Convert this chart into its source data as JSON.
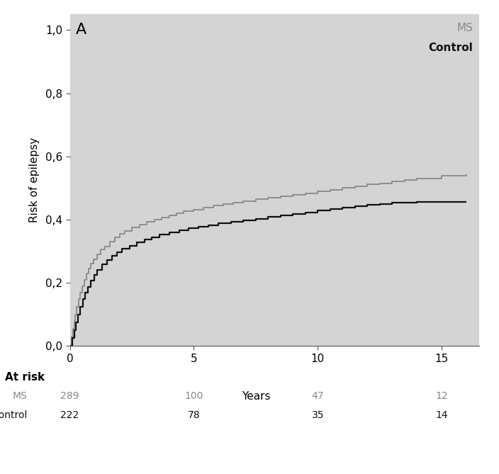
{
  "background_color": "#d4d4d4",
  "fig_bg_color": "#ffffff",
  "panel_label": "A",
  "ylabel": "Risk of epilepsy",
  "xlabel": "Years",
  "xlim": [
    0,
    16.5
  ],
  "ylim": [
    0.0,
    1.05
  ],
  "xticks": [
    0,
    5,
    10,
    15
  ],
  "yticks": [
    0.0,
    0.2,
    0.4,
    0.6,
    0.8,
    1.0
  ],
  "ytick_labels": [
    "0,0",
    "0,2",
    "0,4",
    "0,6",
    "0,8",
    "1,0"
  ],
  "ms_color": "#888888",
  "control_color": "#111111",
  "legend_ms": "MS",
  "legend_control": "Control",
  "at_risk_label": "At risk",
  "at_risk_ms_label": "MS",
  "at_risk_control_label": "Control",
  "at_risk_times": [
    0,
    5,
    10,
    15
  ],
  "at_risk_ms": [
    289,
    100,
    47,
    12
  ],
  "at_risk_control": [
    222,
    78,
    35,
    14
  ],
  "ms_x": [
    0,
    0.08,
    0.12,
    0.18,
    0.22,
    0.28,
    0.35,
    0.42,
    0.5,
    0.58,
    0.67,
    0.75,
    0.85,
    0.95,
    1.1,
    1.25,
    1.4,
    1.6,
    1.8,
    2.0,
    2.2,
    2.5,
    2.8,
    3.1,
    3.4,
    3.7,
    4.0,
    4.3,
    4.6,
    5.0,
    5.4,
    5.8,
    6.2,
    6.6,
    7.0,
    7.5,
    8.0,
    8.5,
    9.0,
    9.5,
    10.0,
    10.5,
    11.0,
    11.5,
    12.0,
    12.5,
    13.0,
    13.5,
    14.0,
    15.0,
    16.0
  ],
  "ms_y": [
    0.0,
    0.03,
    0.055,
    0.08,
    0.1,
    0.125,
    0.148,
    0.17,
    0.19,
    0.21,
    0.23,
    0.245,
    0.26,
    0.275,
    0.29,
    0.305,
    0.315,
    0.33,
    0.345,
    0.355,
    0.365,
    0.375,
    0.385,
    0.393,
    0.4,
    0.407,
    0.413,
    0.42,
    0.426,
    0.432,
    0.438,
    0.444,
    0.449,
    0.454,
    0.459,
    0.464,
    0.469,
    0.474,
    0.479,
    0.484,
    0.489,
    0.495,
    0.5,
    0.506,
    0.511,
    0.515,
    0.52,
    0.525,
    0.53,
    0.538,
    0.543
  ],
  "ctrl_x": [
    0,
    0.1,
    0.18,
    0.25,
    0.33,
    0.42,
    0.52,
    0.62,
    0.72,
    0.85,
    0.98,
    1.1,
    1.3,
    1.5,
    1.7,
    1.9,
    2.1,
    2.4,
    2.7,
    3.0,
    3.3,
    3.6,
    4.0,
    4.4,
    4.8,
    5.2,
    5.6,
    6.0,
    6.5,
    7.0,
    7.5,
    8.0,
    8.5,
    9.0,
    9.5,
    10.0,
    10.5,
    11.0,
    11.5,
    12.0,
    12.5,
    13.0,
    14.0,
    15.0,
    16.0
  ],
  "ctrl_y": [
    0.0,
    0.025,
    0.05,
    0.075,
    0.1,
    0.125,
    0.148,
    0.168,
    0.188,
    0.208,
    0.225,
    0.24,
    0.258,
    0.272,
    0.285,
    0.297,
    0.308,
    0.318,
    0.328,
    0.337,
    0.345,
    0.353,
    0.36,
    0.366,
    0.372,
    0.378,
    0.383,
    0.388,
    0.393,
    0.398,
    0.403,
    0.408,
    0.413,
    0.418,
    0.423,
    0.428,
    0.433,
    0.438,
    0.443,
    0.447,
    0.45,
    0.453,
    0.455,
    0.455,
    0.455
  ]
}
